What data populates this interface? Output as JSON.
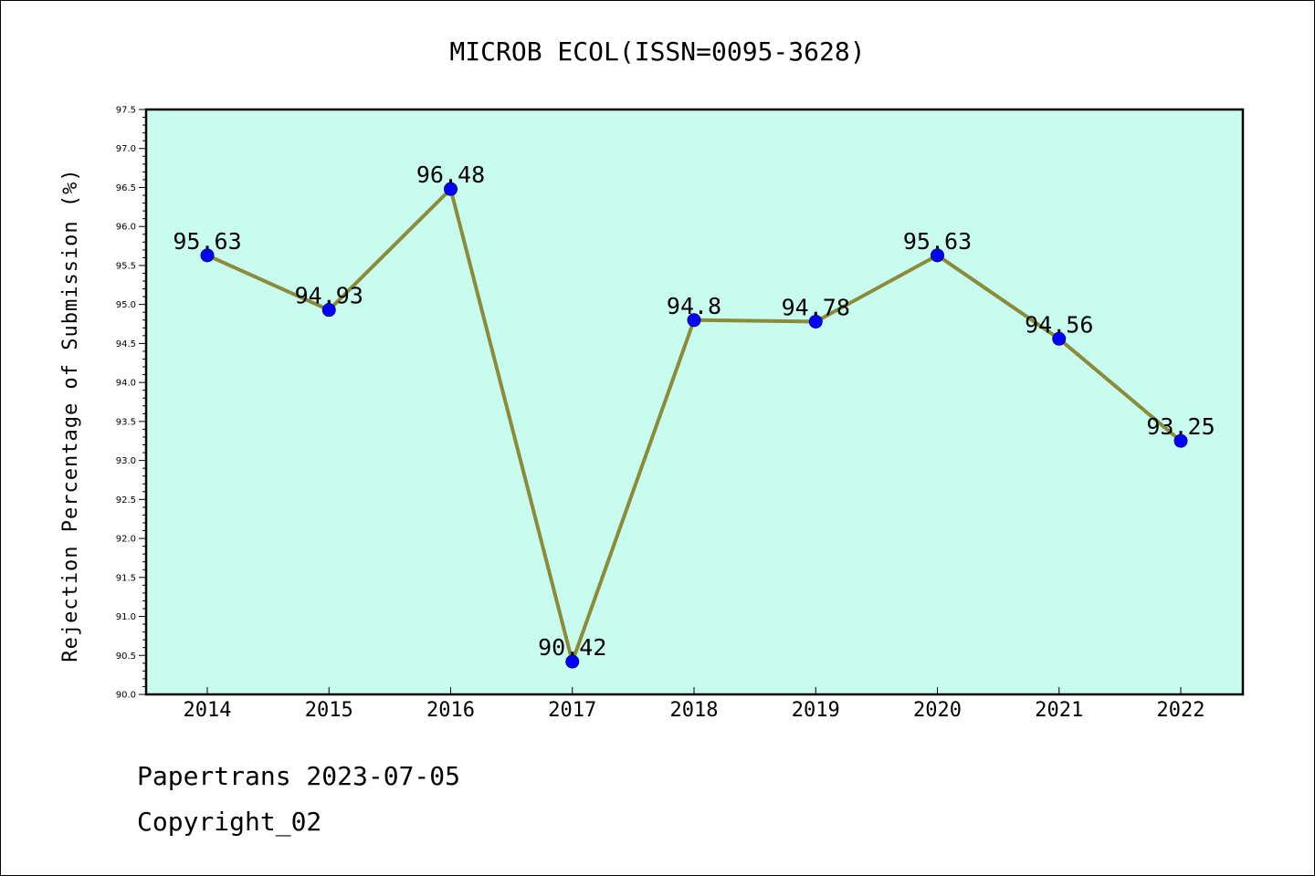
{
  "chart_data": {
    "type": "line",
    "title": "MICROB ECOL(ISSN=0095-3628)",
    "ylabel": "Rejection Percentage of Submission (%)",
    "xlabel": "",
    "categories": [
      "2014",
      "2015",
      "2016",
      "2017",
      "2018",
      "2019",
      "2020",
      "2021",
      "2022"
    ],
    "values": [
      95.63,
      94.93,
      96.48,
      90.42,
      94.8,
      94.78,
      95.63,
      94.56,
      93.25
    ],
    "data_labels": [
      "95.63",
      "94.93",
      "96.48",
      "90.42",
      "94.8",
      "94.78",
      "95.63",
      "94.56",
      "93.25"
    ],
    "ylim": [
      90.0,
      97.5
    ],
    "yticks": [
      "90.0",
      "90.5",
      "91.0",
      "91.5",
      "92.0",
      "92.5",
      "93.0",
      "93.5",
      "94.0",
      "94.5",
      "95.0",
      "95.5",
      "96.0",
      "96.5",
      "97.0",
      "97.5"
    ],
    "grid": false,
    "colors": {
      "plot_background": "#c8fcee",
      "line": "#8b8b3a",
      "marker": "#0000ff"
    }
  },
  "footer": {
    "line1": "Papertrans 2023-07-05",
    "line2": "Copyright_02"
  }
}
